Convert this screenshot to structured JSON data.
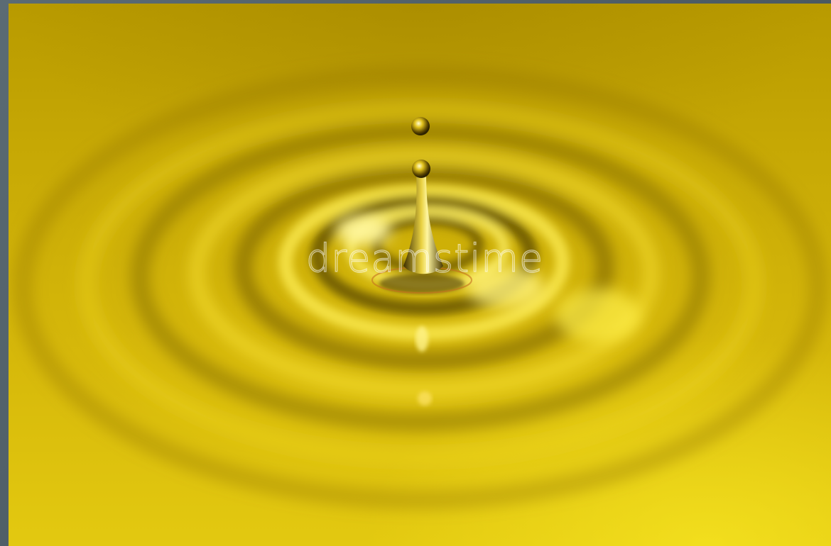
{
  "image": {
    "subject": "liquid-droplet-ripples",
    "colors": {
      "liquid": "#d6b80a",
      "highlight": "#fff24a",
      "shadow": "#6b5600",
      "border": "#4a5a63"
    }
  },
  "watermark": {
    "text": "dreamstime"
  }
}
